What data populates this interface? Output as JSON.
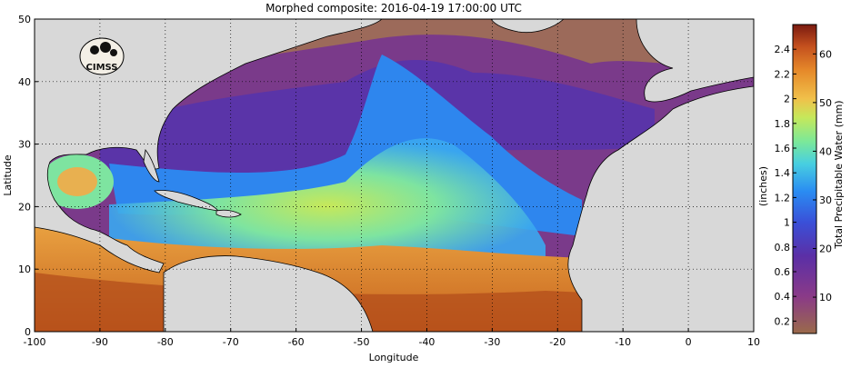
{
  "title": "Morphed composite: 2016-04-19 17:00:00 UTC",
  "logo_text": "CIMSS",
  "map": {
    "xlabel": "Longitude",
    "ylabel": "Latitude",
    "xlim": [
      -100,
      10
    ],
    "ylim": [
      0,
      50
    ],
    "x_ticks": [
      "-100",
      "-90",
      "-80",
      "-70",
      "-60",
      "-50",
      "-40",
      "-30",
      "-20",
      "-10",
      "0",
      "10"
    ],
    "y_ticks": [
      "0",
      "10",
      "20",
      "30",
      "40",
      "50"
    ],
    "grid": "dotted"
  },
  "colorbar": {
    "left_ticks": [
      "0.2",
      "0.4",
      "0.6",
      "0.8",
      "1",
      "1.2",
      "1.4",
      "1.6",
      "1.8",
      "2",
      "2.2",
      "2.4"
    ],
    "left_label": "(inches)",
    "right_ticks": [
      "10",
      "20",
      "30",
      "40",
      "50",
      "60"
    ],
    "right_label": "Total Precipitable Water (mm)",
    "colors": [
      "#8a5a3a",
      "#7b2e7e",
      "#5a3aa8",
      "#3a56d8",
      "#2e8cf0",
      "#45c8e8",
      "#6ee4a0",
      "#bde85a",
      "#f0c848",
      "#e8902a",
      "#c8501c",
      "#8a1a12"
    ]
  }
}
